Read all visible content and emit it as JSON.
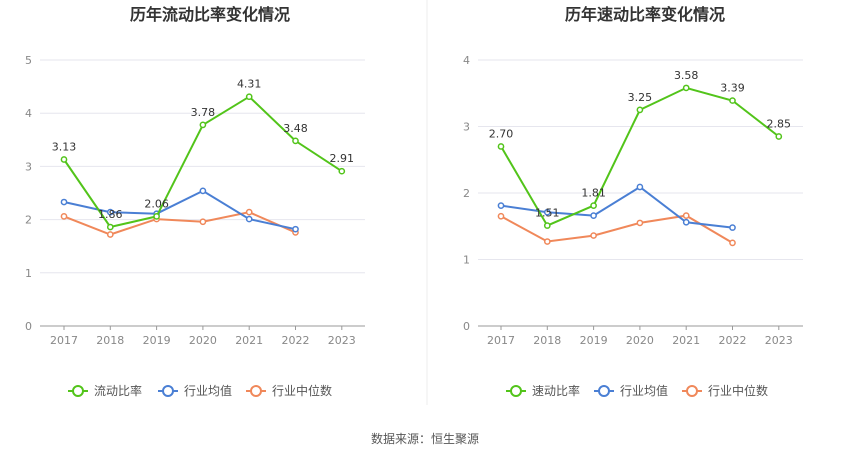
{
  "colors": {
    "main": "#52c41a",
    "industry_avg": "#4a7fd4",
    "industry_median": "#f0885a",
    "grid": "#e6e6ee",
    "axis": "#999999"
  },
  "source": "数据来源：恒生聚源",
  "chart_data": [
    {
      "type": "line",
      "title": "历年流动比率变化情况",
      "categories": [
        "2017",
        "2018",
        "2019",
        "2020",
        "2021",
        "2022",
        "2023"
      ],
      "ylim": [
        0,
        5
      ],
      "yticks": [
        "0",
        "1",
        "2",
        "3",
        "4",
        "5"
      ],
      "grid": true,
      "legend": "bottom",
      "series": [
        {
          "name": "流动比率",
          "values": [
            3.13,
            1.86,
            2.06,
            3.78,
            4.31,
            3.48,
            2.91
          ],
          "labels": [
            "3.13",
            "1.86",
            "2.06",
            "3.78",
            "4.31",
            "3.48",
            "2.91"
          ]
        },
        {
          "name": "行业均值",
          "values": [
            2.33,
            2.14,
            2.11,
            2.54,
            2.01,
            1.82,
            null
          ]
        },
        {
          "name": "行业中位数",
          "values": [
            2.06,
            1.72,
            2.01,
            1.96,
            2.14,
            1.76,
            null
          ]
        }
      ]
    },
    {
      "type": "line",
      "title": "历年速动比率变化情况",
      "categories": [
        "2017",
        "2018",
        "2019",
        "2020",
        "2021",
        "2022",
        "2023"
      ],
      "ylim": [
        0,
        4
      ],
      "yticks": [
        "0",
        "1",
        "2",
        "3",
        "4"
      ],
      "grid": true,
      "legend": "bottom",
      "series": [
        {
          "name": "速动比率",
          "values": [
            2.7,
            1.51,
            1.81,
            3.25,
            3.58,
            3.39,
            2.85
          ],
          "labels": [
            "2.70",
            "1.51",
            "1.81",
            "3.25",
            "3.58",
            "3.39",
            "2.85"
          ]
        },
        {
          "name": "行业均值",
          "values": [
            1.81,
            1.71,
            1.66,
            2.09,
            1.56,
            1.48,
            null
          ]
        },
        {
          "name": "行业中位数",
          "values": [
            1.65,
            1.27,
            1.36,
            1.55,
            1.66,
            1.25,
            null
          ]
        }
      ]
    }
  ]
}
